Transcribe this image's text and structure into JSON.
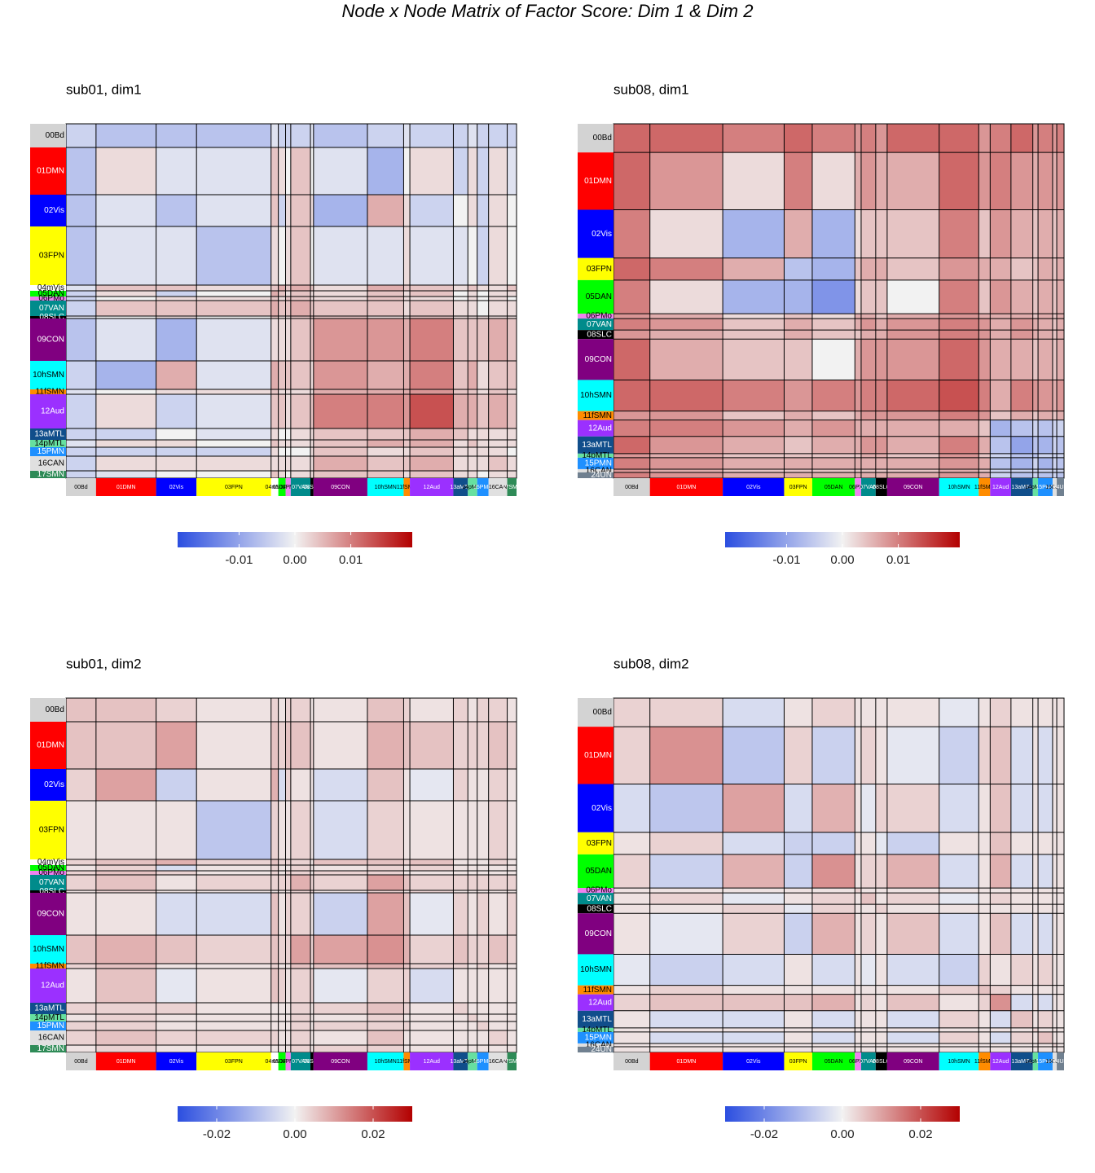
{
  "title": "Node x Node Matrix of Factor Score: Dim 1 & Dim 2",
  "chart_data": [
    {
      "type": "heatmap",
      "title": "sub01, dim1",
      "networks": [
        "00Bd",
        "01DMN",
        "02Vis",
        "03FPN",
        "04mVis",
        "05DAN",
        "06PMo",
        "07VAN",
        "08SLC",
        "09CON",
        "10hSMN",
        "11fSMN",
        "12Aud",
        "13aMTL",
        "14pMTL",
        "15PMN",
        "16CAN",
        "17SMN"
      ],
      "network_colors": [
        "#d3d3d3",
        "#ff0000",
        "#0000ff",
        "#ffff00",
        "#ffffff",
        "#00ff00",
        "#ee82ee",
        "#008b8b",
        "#000000",
        "#800080",
        "#00ffff",
        "#ff8c00",
        "#9b30ff",
        "#104e8b",
        "#66e0a0",
        "#1e90ff",
        "#e0e0e0",
        "#2e8b57"
      ],
      "sizes": [
        29,
        58,
        39,
        72,
        7,
        7,
        5,
        19,
        3,
        52,
        35,
        6,
        42,
        14,
        9,
        11,
        18,
        9
      ],
      "matrix": [
        [
          -0.004,
          -0.006,
          -0.006,
          -0.006,
          -0.002,
          -0.004,
          -0.004,
          -0.004,
          -0.002,
          -0.006,
          -0.004,
          -0.002,
          -0.004,
          -0.004,
          -0.002,
          -0.004,
          -0.004,
          -0.004
        ],
        [
          0.002,
          -0.002,
          -0.002,
          0.004,
          0.002,
          0,
          0.004,
          0,
          -0.002,
          -0.008,
          0,
          0.002,
          -0.004,
          0.002,
          -0.004,
          0.002,
          -0.002
        ],
        [
          -0.006,
          -0.002,
          0.004,
          -0.004,
          0.002,
          0.004,
          0.002,
          -0.008,
          0.006,
          0.002,
          -0.004,
          0,
          0.002,
          -0.004,
          0.002,
          0
        ],
        [
          -0.006,
          0.002,
          0,
          0.002,
          0.004,
          0,
          -0.002,
          -0.002,
          0.002,
          -0.002,
          -0.002,
          0,
          -0.004,
          0.002,
          0
        ],
        [
          0.004,
          0.006,
          0.004,
          0.006,
          0.004,
          0.002,
          0.006,
          0.004,
          0.004,
          0.002,
          0.004,
          0.002,
          0.002,
          0.004
        ],
        [
          0.004,
          0.002,
          0.004,
          0.002,
          0.002,
          0.004,
          0.002,
          0.004,
          0,
          0.002,
          0,
          0.002,
          0.002
        ],
        [
          0.004,
          0.004,
          0.002,
          0.002,
          0.004,
          0.002,
          0.002,
          0,
          0.002,
          0,
          0.002,
          0
        ],
        [
          0.006,
          0.004,
          0.004,
          0.004,
          0.002,
          0.004,
          0.002,
          0.002,
          0,
          0.002,
          0.002
        ],
        [
          0.004,
          0.004,
          0.002,
          0.002,
          0.004,
          0.002,
          0.002,
          0.002,
          0.002,
          0.002
        ],
        [
          0.008,
          0.008,
          0.006,
          0.01,
          0.004,
          0.004,
          0.004,
          0.006,
          0.004
        ],
        [
          0.006,
          0.006,
          0.01,
          0.004,
          0.006,
          0.002,
          0.004,
          0.004
        ],
        [
          0.006,
          0.008,
          0.004,
          0.004,
          0.002,
          0.004,
          0.002
        ],
        [
          0.014,
          0.006,
          0.006,
          0.004,
          0.006,
          0.004
        ],
        [
          0.004,
          0.002,
          0.002,
          0.002,
          0.002
        ],
        [
          0.004,
          0.002,
          0.002,
          0.002
        ],
        [
          0.002,
          0.002,
          0
        ],
        [
          0.004,
          0.002
        ],
        [
          0.002
        ]
      ],
      "clim": [
        -0.021,
        0.021
      ],
      "cticks": [
        -0.01,
        {
          "value": 0,
          "label": "0.00"
        },
        0.01
      ],
      "colorscale": [
        "#2b4ee0",
        "#f2f2f2",
        "#b30000"
      ]
    },
    {
      "type": "heatmap",
      "title": "sub08, dim1",
      "networks": [
        "00Bd",
        "01DMN",
        "02Vis",
        "03FPN",
        "05DAN",
        "06PMo",
        "07VAN",
        "08SLC",
        "09CON",
        "10hSMN",
        "11fSMN",
        "12Aud",
        "13aMTL",
        "14pMTL",
        "15PMN",
        "16CAN",
        "24UN"
      ],
      "network_colors": [
        "#d3d3d3",
        "#ff0000",
        "#0000ff",
        "#ffff00",
        "#00ff00",
        "#ee82ee",
        "#008b8b",
        "#000000",
        "#800080",
        "#00ffff",
        "#ff8c00",
        "#9b30ff",
        "#104e8b",
        "#66e0a0",
        "#1e90ff",
        "#e0e0e0",
        "#708090"
      ],
      "sizes": [
        35,
        70,
        59,
        27,
        41,
        6,
        14,
        11,
        50,
        38,
        11,
        20,
        21,
        5,
        14,
        4,
        7
      ],
      "matrix": [
        [
          0.012,
          0.012,
          0.01,
          0.012,
          0.01,
          0.008,
          0.01,
          0.008,
          0.012,
          0.012,
          0.008,
          0.01,
          0.012,
          0.008,
          0.01,
          0.008,
          0.01
        ],
        [
          0.008,
          0.002,
          0.01,
          0.002,
          0.006,
          0.008,
          0.006,
          0.006,
          0.012,
          0.008,
          0.01,
          0.008,
          0.006,
          0.008,
          0.006,
          0.008
        ],
        [
          -0.008,
          0.006,
          -0.008,
          0.002,
          0.004,
          0.004,
          0.004,
          0.01,
          0.004,
          0.008,
          0.006,
          0.004,
          0.006,
          0.004,
          0.006
        ],
        [
          -0.006,
          -0.008,
          0.004,
          0.006,
          0.006,
          0.004,
          0.008,
          0.006,
          0.006,
          0.004,
          0.004,
          0.006,
          0.004,
          0.006
        ],
        [
          -0.012,
          0.002,
          0.004,
          0.004,
          0,
          0.01,
          0.004,
          0.008,
          0.006,
          0.004,
          0.006,
          0.004,
          0.006
        ],
        [
          0.006,
          0.006,
          0.004,
          0.006,
          0.008,
          0.006,
          0.006,
          0.006,
          0.004,
          0.006,
          0.004,
          0.006
        ],
        [
          0.008,
          0.006,
          0.008,
          0.01,
          0.008,
          0.006,
          0.008,
          0.006,
          0.006,
          0.004,
          0.006
        ],
        [
          0.006,
          0.008,
          0.01,
          0.008,
          0.006,
          0.008,
          0.006,
          0.006,
          0.004,
          0.006
        ],
        [
          0.008,
          0.012,
          0.008,
          0.006,
          0.006,
          0.004,
          0.006,
          0.004,
          0.006
        ],
        [
          0.014,
          0.01,
          0.006,
          0.01,
          0.008,
          0.008,
          0.006,
          0.008
        ],
        [
          0.008,
          0.004,
          0.006,
          0.004,
          0.006,
          0.004,
          0.006
        ],
        [
          -0.008,
          -0.006,
          -0.004,
          -0.006,
          -0.004,
          -0.004
        ],
        [
          -0.01,
          -0.006,
          -0.008,
          -0.004,
          -0.006
        ],
        [
          -0.006,
          -0.004,
          -0.004,
          -0.004
        ],
        [
          -0.008,
          -0.004,
          -0.006
        ],
        [
          -0.004,
          -0.004
        ],
        [
          -0.006
        ]
      ],
      "clim": [
        -0.021,
        0.021
      ],
      "cticks": [
        -0.01,
        {
          "value": 0,
          "label": "0.00"
        },
        0.01
      ],
      "colorscale": [
        "#2b4ee0",
        "#f2f2f2",
        "#b30000"
      ]
    },
    {
      "type": "heatmap",
      "title": "sub01, dim2",
      "networks": [
        "00Bd",
        "01DMN",
        "02Vis",
        "03FPN",
        "04mVis",
        "05DAN",
        "06PMo",
        "07VAN",
        "08SLC",
        "09CON",
        "10hSMN",
        "11fSMN",
        "12Aud",
        "13aMTL",
        "14pMTL",
        "15PMN",
        "16CAN",
        "17SMN"
      ],
      "network_colors": [
        "#d3d3d3",
        "#ff0000",
        "#0000ff",
        "#ffff00",
        "#ffffff",
        "#00ff00",
        "#ee82ee",
        "#008b8b",
        "#000000",
        "#800080",
        "#00ffff",
        "#ff8c00",
        "#9b30ff",
        "#104e8b",
        "#66e0a0",
        "#1e90ff",
        "#e0e0e0",
        "#2e8b57"
      ],
      "sizes": [
        29,
        58,
        39,
        72,
        7,
        7,
        5,
        19,
        3,
        52,
        35,
        6,
        42,
        14,
        9,
        11,
        18,
        9
      ],
      "matrix": [
        [
          0.006,
          0.006,
          0.004,
          0.002,
          0.004,
          0.002,
          0.004,
          0.004,
          0.002,
          0.002,
          0.006,
          0.004,
          0.002,
          0.004,
          0.002,
          0.004,
          0.004,
          0.002
        ],
        [
          0.006,
          0.01,
          0.002,
          0.006,
          0.004,
          0.006,
          0.006,
          0.004,
          0.002,
          0.008,
          0.006,
          0.006,
          0.004,
          0.004,
          0.004,
          0.006,
          0.004
        ],
        [
          -0.006,
          0.002,
          0.008,
          -0.004,
          0.004,
          0.002,
          0.002,
          -0.004,
          0.006,
          0.002,
          -0.002,
          0.004,
          0.002,
          0.002,
          0.004,
          0.002
        ],
        [
          -0.008,
          0.004,
          0.002,
          0.002,
          0.004,
          0.002,
          -0.004,
          0.004,
          0.002,
          0.002,
          0.002,
          0.002,
          0.002,
          0.004,
          0.002
        ],
        [
          0.006,
          0.004,
          0.004,
          0.004,
          0.002,
          0.006,
          0.006,
          0.004,
          0.006,
          0.002,
          0.002,
          0.002,
          0.004,
          0.002
        ],
        [
          0.002,
          0.002,
          0.004,
          0.002,
          0.002,
          0.004,
          0.002,
          0.004,
          0.002,
          0.002,
          0.002,
          0.002,
          0.002
        ],
        [
          0.004,
          0.004,
          0.002,
          0.004,
          0.004,
          0.002,
          0.002,
          0.002,
          0.002,
          0.002,
          0.002,
          0.002
        ],
        [
          0.008,
          0.004,
          0.004,
          0.01,
          0.006,
          0.004,
          0.004,
          0.004,
          0.004,
          0.004,
          0.004
        ],
        [
          0.004,
          0.002,
          0.004,
          0.002,
          0.004,
          0.002,
          0.002,
          0.002,
          0.002,
          0.002
        ],
        [
          -0.006,
          0.01,
          0.006,
          -0.002,
          0.004,
          0.002,
          0.004,
          0.002,
          0.004
        ],
        [
          0.012,
          0.008,
          0.004,
          0.006,
          0.004,
          0.004,
          0.006,
          0.004
        ],
        [
          0.006,
          0.004,
          0.004,
          0.002,
          0.004,
          0.002,
          0.002
        ],
        [
          -0.004,
          0.002,
          0.002,
          0.002,
          0.002,
          0.002
        ],
        [
          0.004,
          0.002,
          0.002,
          0.002,
          0.002
        ],
        [
          0.004,
          0.002,
          0.002,
          0.002
        ],
        [
          0.004,
          0.002,
          0.002
        ],
        [
          0.004,
          0.002
        ],
        [
          0.002
        ]
      ],
      "clim": [
        -0.03,
        0.03
      ],
      "cticks": [
        -0.02,
        {
          "value": 0,
          "label": "0.00"
        },
        0.02
      ],
      "colorscale": [
        "#2b4ee0",
        "#f2f2f2",
        "#b30000"
      ]
    },
    {
      "type": "heatmap",
      "title": "sub08, dim2",
      "networks": [
        "00Bd",
        "01DMN",
        "02Vis",
        "03FPN",
        "05DAN",
        "06PMo",
        "07VAN",
        "08SLC",
        "09CON",
        "10hSMN",
        "11fSMN",
        "12Aud",
        "13aMTL",
        "14pMTL",
        "15PMN",
        "16CAN",
        "24UN"
      ],
      "network_colors": [
        "#d3d3d3",
        "#ff0000",
        "#0000ff",
        "#ffff00",
        "#00ff00",
        "#ee82ee",
        "#008b8b",
        "#000000",
        "#800080",
        "#00ffff",
        "#ff8c00",
        "#9b30ff",
        "#104e8b",
        "#66e0a0",
        "#1e90ff",
        "#e0e0e0",
        "#708090"
      ],
      "sizes": [
        35,
        70,
        59,
        27,
        41,
        6,
        14,
        11,
        50,
        38,
        11,
        20,
        21,
        5,
        14,
        4,
        7
      ],
      "matrix": [
        [
          0.004,
          0.004,
          -0.004,
          0.002,
          0.004,
          0.002,
          0.002,
          0.002,
          0.002,
          -0.002,
          0.002,
          0.004,
          0.002,
          0.002,
          0.002,
          0.002,
          0.002
        ],
        [
          0.012,
          -0.008,
          0.004,
          -0.006,
          0.002,
          0.004,
          0.002,
          -0.002,
          -0.006,
          0.004,
          0.006,
          -0.004,
          0.002,
          -0.004,
          0.002,
          0.002
        ],
        [
          0.01,
          -0.004,
          0.008,
          0.002,
          -0.002,
          0.004,
          0.004,
          -0.004,
          0.002,
          0.006,
          -0.004,
          0.002,
          -0.004,
          0.002,
          0.002
        ],
        [
          -0.006,
          -0.006,
          0.002,
          0.002,
          -0.002,
          -0.006,
          0.002,
          0.002,
          0.006,
          0.002,
          0.002,
          0.002,
          0.002,
          0.002
        ],
        [
          0.012,
          0.002,
          0.004,
          0.004,
          0.008,
          -0.004,
          0.002,
          0.008,
          -0.004,
          0.002,
          -0.004,
          0.002,
          0.002
        ],
        [
          0.004,
          0.002,
          0.002,
          0.002,
          0.002,
          0.002,
          0.002,
          0.002,
          0.002,
          0.002,
          0.002,
          0.002
        ],
        [
          0.006,
          0.002,
          0.004,
          -0.002,
          0.002,
          0.004,
          0.002,
          0.002,
          0.002,
          0.002,
          0.002
        ],
        [
          0.004,
          0.002,
          0.002,
          0.002,
          0.002,
          0.002,
          0.002,
          0.002,
          0.002,
          0.002
        ],
        [
          0.006,
          -0.004,
          0.002,
          0.006,
          -0.004,
          0.002,
          -0.004,
          0.002,
          0.002
        ],
        [
          -0.006,
          0.004,
          0.002,
          0.004,
          0.002,
          0.004,
          0.002,
          0.002
        ],
        [
          0.006,
          0.004,
          0.002,
          0.002,
          0.002,
          0.002,
          0.002
        ],
        [
          0.012,
          -0.004,
          0.002,
          -0.004,
          0.002,
          0.002
        ],
        [
          0.006,
          0.002,
          0.004,
          0.002,
          0.002
        ],
        [
          0.004,
          0.002,
          0.002,
          0.002
        ],
        [
          0.006,
          0.002,
          0.002
        ],
        [
          0.004,
          0.002
        ],
        [
          0.002
        ]
      ],
      "clim": [
        -0.03,
        0.03
      ],
      "cticks": [
        -0.02,
        {
          "value": 0,
          "label": "0.00"
        },
        0.02
      ],
      "colorscale": [
        "#2b4ee0",
        "#f2f2f2",
        "#b30000"
      ]
    }
  ]
}
